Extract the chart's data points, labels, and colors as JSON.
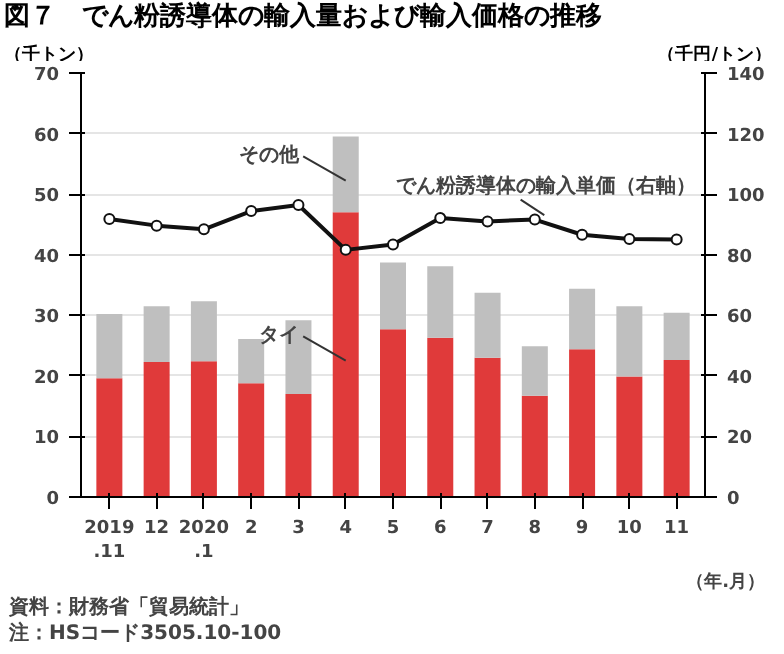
{
  "chart_data": {
    "type": "bar",
    "title": "図７　でん粉誘導体の輸入量および輸入価格の推移",
    "categories": [
      "2019\n.11",
      "12",
      "2020\n.1",
      "2",
      "3",
      "4",
      "5",
      "6",
      "7",
      "8",
      "9",
      "10",
      "11"
    ],
    "stacked": true,
    "series": [
      {
        "name": "タイ",
        "color": "#e03a3a",
        "values": [
          19.6,
          22.3,
          22.4,
          18.8,
          17.0,
          47.0,
          27.7,
          26.3,
          23.0,
          16.7,
          24.4,
          19.9,
          22.6
        ]
      },
      {
        "name": "その他",
        "color": "#bfbfbf",
        "values": [
          10.6,
          9.2,
          9.9,
          7.3,
          12.2,
          12.5,
          11.0,
          11.8,
          10.7,
          8.2,
          10.0,
          11.6,
          7.8
        ]
      },
      {
        "name": "でん粉誘導体の輸入単価（右軸）",
        "type": "line",
        "axis": "y2",
        "color": "#111111",
        "marker": "circle",
        "values": [
          91.8,
          89.6,
          88.4,
          94.4,
          96.4,
          81.6,
          83.4,
          92.1,
          91.0,
          91.6,
          86.6,
          85.2,
          85.0
        ]
      }
    ],
    "xlabel": "（年.月）",
    "ylabel": "（千トン）",
    "y2label": "（千円/トン）",
    "ylim": [
      0,
      70
    ],
    "yticks": [
      0,
      10,
      20,
      30,
      40,
      50,
      60,
      70
    ],
    "y2lim": [
      0,
      140
    ],
    "y2ticks": [
      0,
      20,
      40,
      60,
      80,
      100,
      120,
      140
    ],
    "grid": "y",
    "legend": false,
    "annotations": [
      "資料：財務省「貿易統計」",
      "注：HSコード3505.10-100"
    ]
  }
}
